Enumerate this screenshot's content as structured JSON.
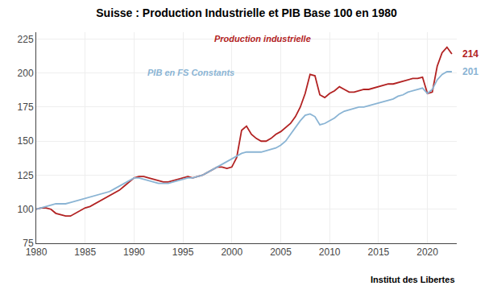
{
  "chart_data": {
    "type": "line",
    "title": "Suisse : Production Industrielle et PIB Base 100 en 1980",
    "x": [
      1980,
      1980.5,
      1981,
      1981.5,
      1982,
      1982.5,
      1983,
      1983.5,
      1984,
      1984.5,
      1985,
      1985.5,
      1986,
      1986.5,
      1987,
      1987.5,
      1988,
      1988.5,
      1989,
      1989.5,
      1990,
      1990.5,
      1991,
      1991.5,
      1992,
      1992.5,
      1993,
      1993.5,
      1994,
      1994.5,
      1995,
      1995.5,
      1996,
      1996.5,
      1997,
      1997.5,
      1998,
      1998.5,
      1999,
      1999.5,
      2000,
      2000.5,
      2001,
      2001.5,
      2002,
      2002.5,
      2003,
      2003.5,
      2004,
      2004.5,
      2005,
      2005.5,
      2006,
      2006.5,
      2007,
      2007.5,
      2008,
      2008.5,
      2009,
      2009.5,
      2010,
      2010.5,
      2011,
      2011.5,
      2012,
      2012.5,
      2013,
      2013.5,
      2014,
      2014.5,
      2015,
      2015.5,
      2016,
      2016.5,
      2017,
      2017.5,
      2018,
      2018.5,
      2019,
      2019.5,
      2020,
      2020.5,
      2021,
      2021.5,
      2022,
      2022.5
    ],
    "series": [
      {
        "name": "Production industrielle",
        "color": "#b22222",
        "values": [
          100,
          101,
          101,
          100,
          97,
          96,
          95,
          95,
          97,
          99,
          101,
          102,
          104,
          106,
          108,
          110,
          112,
          114,
          117,
          120,
          123,
          124,
          124,
          123,
          122,
          121,
          120,
          120,
          121,
          122,
          123,
          124,
          123,
          124,
          125,
          127,
          129,
          131,
          131,
          130,
          131,
          138,
          158,
          161,
          155,
          152,
          150,
          150,
          152,
          155,
          157,
          160,
          163,
          168,
          175,
          185,
          199,
          198,
          184,
          182,
          185,
          187,
          190,
          188,
          186,
          186,
          187,
          188,
          188,
          189,
          190,
          191,
          192,
          192,
          193,
          194,
          195,
          196,
          196,
          197,
          185,
          186,
          205,
          215,
          219,
          214
        ]
      },
      {
        "name": "PIB en FS Constants",
        "color": "#8ab4d4",
        "values": [
          100,
          101,
          102,
          103,
          104,
          104,
          104,
          105,
          106,
          107,
          108,
          109,
          110,
          111,
          112,
          113,
          115,
          117,
          119,
          121,
          123,
          123,
          122,
          121,
          120,
          119,
          119,
          119,
          120,
          121,
          122,
          123,
          123,
          124,
          125,
          127,
          129,
          131,
          133,
          135,
          137,
          139,
          141,
          142,
          142,
          142,
          142,
          143,
          144,
          145,
          147,
          150,
          155,
          160,
          165,
          169,
          170,
          168,
          162,
          163,
          165,
          167,
          170,
          172,
          173,
          174,
          175,
          175,
          176,
          177,
          178,
          179,
          180,
          181,
          183,
          184,
          186,
          187,
          188,
          189,
          185,
          188,
          195,
          199,
          201,
          201
        ]
      }
    ],
    "annotations": [
      "214",
      "201",
      "Institut des Libertes"
    ],
    "xlim": [
      1980,
      2023
    ],
    "xticks": [
      1980,
      1985,
      1990,
      1995,
      2000,
      2005,
      2010,
      2015,
      2020
    ],
    "ylim": [
      75,
      230
    ],
    "yticks": [
      75,
      100,
      125,
      150,
      175,
      200,
      225
    ],
    "grid": true
  }
}
